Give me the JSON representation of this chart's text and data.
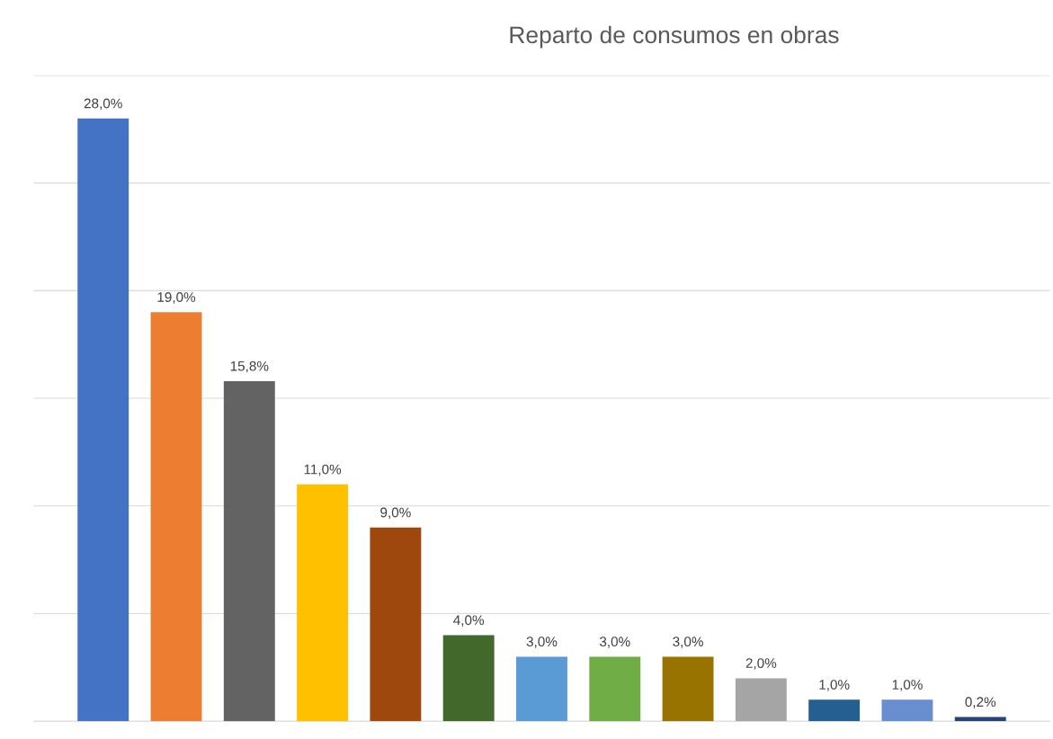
{
  "chart_data": {
    "type": "bar",
    "title": "Reparto de consumos en obras",
    "categories": [
      null,
      null,
      null,
      null,
      null,
      null,
      null,
      null,
      null,
      null,
      null,
      null,
      null
    ],
    "values": [
      28.0,
      19.0,
      15.8,
      11.0,
      9.0,
      4.0,
      3.0,
      3.0,
      3.0,
      2.0,
      1.0,
      1.0,
      0.2
    ],
    "colors": [
      "#4472c4",
      "#ed7d31",
      "#636363",
      "#ffc000",
      "#9e480e",
      "#43682b",
      "#5b9bd5",
      "#70ad47",
      "#997300",
      "#a5a5a5",
      "#255e91",
      "#698ed0",
      "#264478"
    ],
    "value_labels": [
      "28,0%",
      "19,0%",
      "15,8%",
      "11,0%",
      "9,0%",
      "4,0%",
      "3,0%",
      "3,0%",
      "3,0%",
      "2,0%",
      "1,0%",
      "1,0%",
      "0,2%"
    ],
    "ylim": [
      0,
      30
    ],
    "yticks": [
      {
        "value": 0,
        "label": null
      },
      {
        "value": 5,
        "label": null
      },
      {
        "value": 10,
        "label": null
      },
      {
        "value": 15,
        "label": null
      },
      {
        "value": 20,
        "label": null
      },
      {
        "value": 25,
        "label": null
      },
      {
        "value": 30,
        "label": null
      }
    ],
    "grid": "y"
  }
}
